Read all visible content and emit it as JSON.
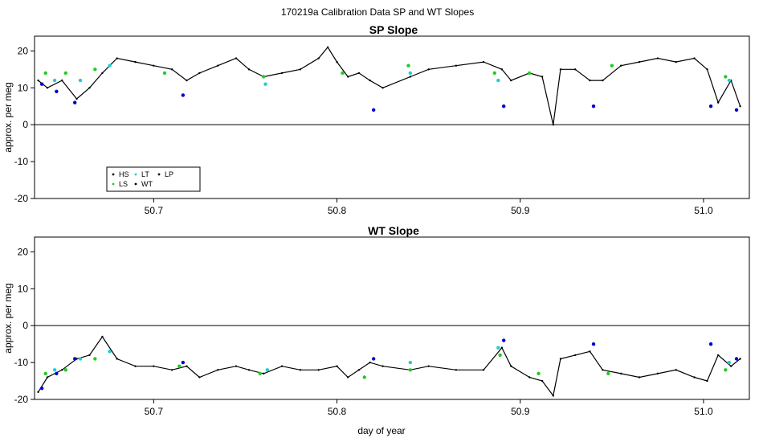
{
  "page_title": "170219a   Calibration Data SP and WT Slopes",
  "x_axis_label": "day of year",
  "colors": {
    "HS": "#000000",
    "LS": "#22cc22",
    "LT": "#22cccc",
    "WT": "#000000",
    "LP": "#000000",
    "blue": "#0000cc"
  },
  "chart_data": [
    {
      "type": "line",
      "title": "SP Slope",
      "ylabel": "approx. per meg",
      "xlim": [
        50.635,
        51.025
      ],
      "ylim": [
        -20,
        24
      ],
      "x_ticks": [
        "50.7",
        "50.8",
        "50.9",
        "51.0"
      ],
      "y_ticks": [
        "20",
        "10",
        "0",
        "-10",
        "-20"
      ],
      "y_tick_values": [
        20,
        10,
        0,
        -10,
        -20
      ],
      "x_tick_values": [
        50.7,
        50.8,
        50.9,
        51.0
      ],
      "reference_line_y": 0,
      "legend": [
        {
          "label": "HS",
          "color": "#000000"
        },
        {
          "label": "LT",
          "color": "#22cccc"
        },
        {
          "label": "LP",
          "color": "#000000"
        },
        {
          "label": "LS",
          "color": "#22cc22"
        },
        {
          "label": "WT",
          "color": "#000000"
        }
      ],
      "series": [
        {
          "name": "WT",
          "x": [
            50.637,
            50.642,
            50.65,
            50.658,
            50.665,
            50.672,
            50.68,
            50.69,
            50.7,
            50.71,
            50.718,
            50.725,
            50.735,
            50.745,
            50.752,
            50.76,
            50.77,
            50.78,
            50.79,
            50.795,
            50.8,
            50.806,
            50.812,
            50.818,
            50.825,
            50.84,
            50.85,
            50.865,
            50.88,
            50.89,
            50.895,
            50.905,
            50.912,
            50.918,
            50.922,
            50.93,
            50.938,
            50.945,
            50.955,
            50.965,
            50.975,
            50.985,
            50.995,
            51.002,
            51.008,
            51.015,
            51.02
          ],
          "y": [
            12,
            10,
            12,
            7,
            10,
            14,
            18,
            17,
            16,
            15,
            12,
            14,
            16,
            18,
            15,
            13,
            14,
            15,
            18,
            21,
            17,
            13,
            14,
            12,
            10,
            13,
            15,
            16,
            17,
            15,
            12,
            14,
            13,
            0,
            15,
            15,
            12,
            12,
            16,
            17,
            18,
            17,
            18,
            15,
            6,
            12,
            5
          ]
        },
        {
          "name": "LS",
          "x": [
            50.641,
            50.652,
            50.668,
            50.706,
            50.76,
            50.803,
            50.839,
            50.886,
            50.905,
            50.95,
            51.012
          ],
          "y": [
            14,
            14,
            15,
            14,
            13,
            14,
            16,
            14,
            14,
            16,
            13
          ]
        },
        {
          "name": "LT",
          "x": [
            50.646,
            50.66,
            50.676,
            50.761,
            50.84,
            50.888,
            51.014
          ],
          "y": [
            12,
            12,
            16,
            11,
            14,
            12,
            12
          ]
        },
        {
          "name": "HS",
          "x": [
            50.639,
            50.647,
            50.657,
            50.716,
            50.82,
            50.891,
            50.94,
            51.004,
            51.018
          ],
          "y": [
            11,
            9,
            6,
            8,
            4,
            5,
            5,
            5,
            4
          ]
        }
      ]
    },
    {
      "type": "line",
      "title": "WT Slope",
      "ylabel": "approx. per meg",
      "xlim": [
        50.635,
        51.025
      ],
      "ylim": [
        -20,
        24
      ],
      "x_ticks": [
        "50.7",
        "50.8",
        "50.9",
        "51.0"
      ],
      "y_ticks": [
        "20",
        "10",
        "0",
        "-10",
        "-20"
      ],
      "y_tick_values": [
        20,
        10,
        0,
        -10,
        -20
      ],
      "x_tick_values": [
        50.7,
        50.8,
        50.9,
        51.0
      ],
      "reference_line_y": 0,
      "series": [
        {
          "name": "WT",
          "x": [
            50.637,
            50.642,
            50.65,
            50.658,
            50.665,
            50.672,
            50.68,
            50.69,
            50.7,
            50.71,
            50.718,
            50.725,
            50.735,
            50.745,
            50.752,
            50.76,
            50.77,
            50.78,
            50.79,
            50.8,
            50.806,
            50.812,
            50.818,
            50.825,
            50.84,
            50.85,
            50.865,
            50.88,
            50.89,
            50.895,
            50.905,
            50.912,
            50.918,
            50.922,
            50.93,
            50.938,
            50.945,
            50.955,
            50.965,
            50.975,
            50.985,
            50.995,
            51.002,
            51.008,
            51.015,
            51.02
          ],
          "y": [
            -18,
            -14,
            -12,
            -9,
            -8,
            -3,
            -9,
            -11,
            -11,
            -12,
            -11,
            -14,
            -12,
            -11,
            -12,
            -13,
            -11,
            -12,
            -12,
            -11,
            -14,
            -12,
            -10,
            -11,
            -12,
            -11,
            -12,
            -12,
            -6,
            -11,
            -14,
            -15,
            -19,
            -9,
            -8,
            -7,
            -12,
            -13,
            -14,
            -13,
            -12,
            -14,
            -15,
            -8,
            -11,
            -9
          ]
        },
        {
          "name": "LS",
          "x": [
            50.641,
            50.652,
            50.668,
            50.714,
            50.758,
            50.815,
            50.84,
            50.889,
            50.91,
            50.948,
            51.012
          ],
          "y": [
            -13,
            -12,
            -9,
            -11,
            -13,
            -14,
            -12,
            -8,
            -13,
            -13,
            -12
          ]
        },
        {
          "name": "LT",
          "x": [
            50.646,
            50.66,
            50.676,
            50.762,
            50.84,
            50.888,
            51.014
          ],
          "y": [
            -12,
            -9,
            -7,
            -12,
            -10,
            -6,
            -10
          ]
        },
        {
          "name": "HS",
          "x": [
            50.639,
            50.647,
            50.657,
            50.716,
            50.82,
            50.891,
            50.94,
            51.004,
            51.018
          ],
          "y": [
            -17,
            -13,
            -9,
            -10,
            -9,
            -4,
            -5,
            -5,
            -9
          ]
        }
      ]
    }
  ]
}
